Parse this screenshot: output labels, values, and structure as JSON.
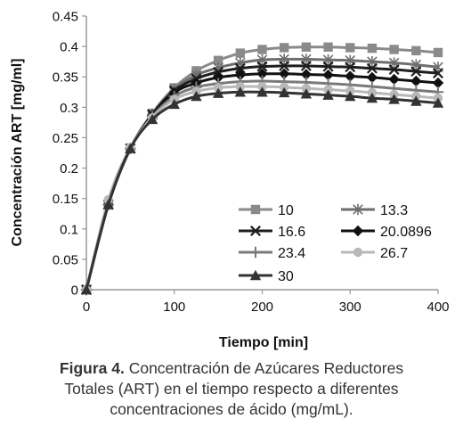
{
  "chart_data": {
    "type": "line",
    "xlabel": "Tiempo [min]",
    "ylabel": "Concentración ART [mg/ml]",
    "xlim": [
      0,
      400
    ],
    "ylim": [
      0,
      0.45
    ],
    "xticks": [
      0,
      100,
      200,
      300,
      400
    ],
    "yticks": [
      0,
      0.05,
      0.1,
      0.15,
      0.2,
      0.25,
      0.3,
      0.35,
      0.4,
      0.45
    ],
    "ytick_labels": [
      "0",
      "0.05",
      "0.1",
      "0.15",
      "0.2",
      "0.25",
      "0.3",
      "0.35",
      "0.4",
      "0.45"
    ],
    "grid": false,
    "legend_position": "bottom-right",
    "x": [
      0,
      25,
      50,
      75,
      100,
      125,
      150,
      175,
      200,
      225,
      250,
      275,
      300,
      325,
      350,
      375,
      400
    ],
    "series": [
      {
        "name": "10",
        "color": "#8a8a8a",
        "marker": "square",
        "values": [
          0,
          0.14,
          0.233,
          0.29,
          0.332,
          0.36,
          0.377,
          0.389,
          0.395,
          0.398,
          0.399,
          0.399,
          0.398,
          0.397,
          0.395,
          0.393,
          0.39
        ]
      },
      {
        "name": "13.3",
        "color": "#6e6e6e",
        "marker": "asterisk",
        "values": [
          0,
          0.14,
          0.232,
          0.289,
          0.33,
          0.353,
          0.365,
          0.373,
          0.378,
          0.379,
          0.379,
          0.378,
          0.377,
          0.375,
          0.373,
          0.37,
          0.366
        ]
      },
      {
        "name": "16.6",
        "color": "#1e1e1e",
        "marker": "x",
        "values": [
          0,
          0.14,
          0.232,
          0.288,
          0.327,
          0.347,
          0.358,
          0.364,
          0.367,
          0.368,
          0.368,
          0.367,
          0.366,
          0.364,
          0.362,
          0.359,
          0.356
        ]
      },
      {
        "name": "20.0896",
        "color": "#111111",
        "marker": "diamond",
        "values": [
          0,
          0.14,
          0.232,
          0.287,
          0.324,
          0.34,
          0.349,
          0.353,
          0.355,
          0.355,
          0.354,
          0.353,
          0.351,
          0.349,
          0.346,
          0.343,
          0.34
        ]
      },
      {
        "name": "23.4",
        "color": "#7a7a7a",
        "marker": "plus",
        "values": [
          0,
          0.14,
          0.232,
          0.285,
          0.318,
          0.333,
          0.339,
          0.342,
          0.343,
          0.342,
          0.341,
          0.339,
          0.337,
          0.334,
          0.331,
          0.328,
          0.325
        ]
      },
      {
        "name": "26.7",
        "color": "#b8b8b8",
        "marker": "circle",
        "values": [
          0,
          0.148,
          0.234,
          0.283,
          0.313,
          0.326,
          0.332,
          0.334,
          0.334,
          0.333,
          0.331,
          0.329,
          0.327,
          0.324,
          0.321,
          0.318,
          0.315
        ]
      },
      {
        "name": "30",
        "color": "#333333",
        "marker": "triangle",
        "values": [
          0,
          0.14,
          0.232,
          0.28,
          0.305,
          0.318,
          0.323,
          0.325,
          0.325,
          0.324,
          0.322,
          0.32,
          0.318,
          0.315,
          0.313,
          0.31,
          0.307
        ]
      }
    ]
  },
  "caption": {
    "label": "Figura 4.",
    "line1": " Concentración de Azúcares Reductores",
    "line2": "Totales (ART) en el tiempo respecto a diferentes",
    "line3": "concentraciones de ácido (mg/mL)."
  }
}
